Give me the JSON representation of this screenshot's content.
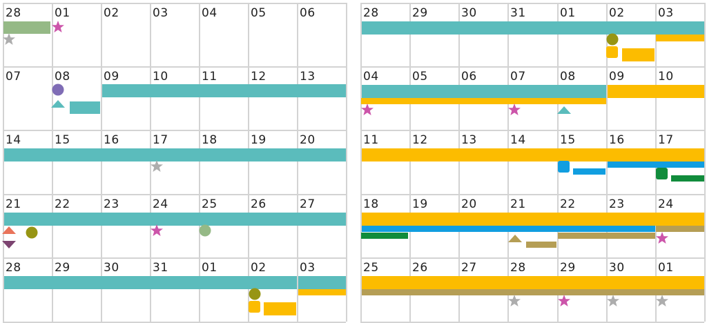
{
  "colors": {
    "teal": "#5bbcbc",
    "yellow": "#fcbc00",
    "blue": "#119ee0",
    "green": "#118c3c",
    "olive": "#979514",
    "sage": "#95b986",
    "khaki": "#b59e55",
    "pink": "#cc55aa",
    "gray": "#adadad",
    "purple": "#7f6cb5",
    "orange": "#e9735a",
    "plum": "#7c4470",
    "grid": "#d3d3d3"
  },
  "left_calendar": {
    "weeks": [
      [
        "28",
        "01",
        "02",
        "03",
        "04",
        "05",
        "06"
      ],
      [
        "07",
        "08",
        "09",
        "10",
        "11",
        "12",
        "13"
      ],
      [
        "14",
        "15",
        "16",
        "17",
        "18",
        "19",
        "20"
      ],
      [
        "21",
        "22",
        "23",
        "24",
        "25",
        "26",
        "27"
      ],
      [
        "28",
        "29",
        "30",
        "31",
        "01",
        "02",
        "03"
      ]
    ]
  },
  "right_calendar": {
    "weeks": [
      [
        "28",
        "29",
        "30",
        "31",
        "01",
        "02",
        "03"
      ],
      [
        "04",
        "05",
        "06",
        "07",
        "08",
        "09",
        "10"
      ],
      [
        "11",
        "12",
        "13",
        "14",
        "15",
        "16",
        "17"
      ],
      [
        "18",
        "19",
        "20",
        "21",
        "22",
        "23",
        "24"
      ],
      [
        "25",
        "26",
        "27",
        "28",
        "29",
        "30",
        "01"
      ]
    ]
  }
}
